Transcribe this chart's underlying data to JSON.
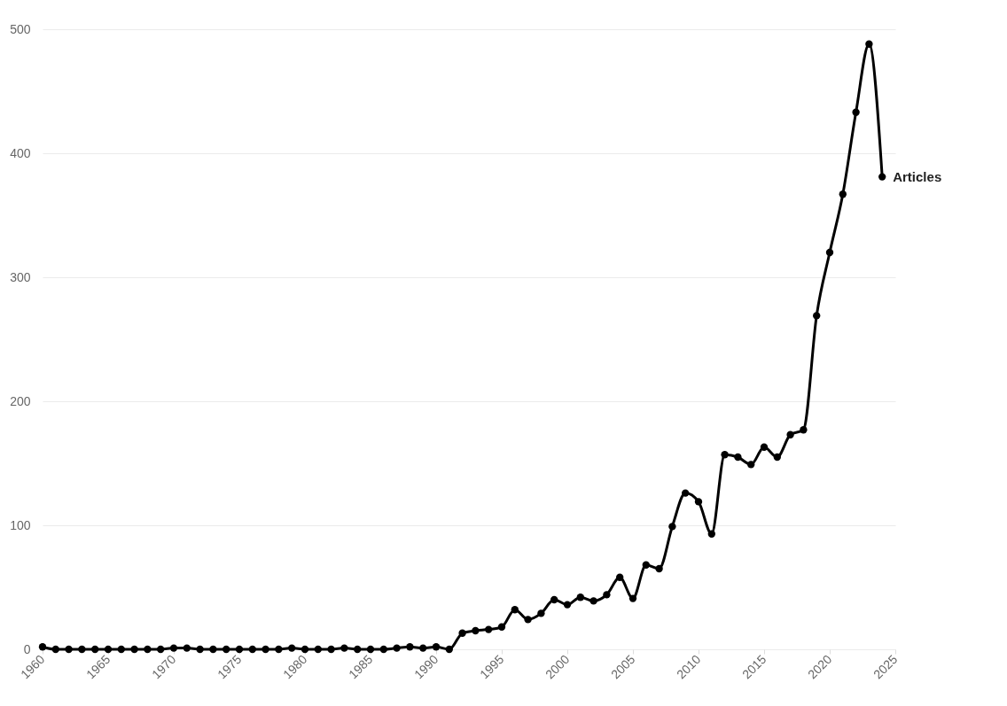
{
  "chart_data": {
    "type": "line",
    "x": [
      1960,
      1961,
      1962,
      1963,
      1964,
      1965,
      1966,
      1967,
      1968,
      1969,
      1970,
      1971,
      1972,
      1973,
      1974,
      1975,
      1976,
      1977,
      1978,
      1979,
      1980,
      1981,
      1982,
      1983,
      1984,
      1985,
      1986,
      1987,
      1988,
      1989,
      1990,
      1991,
      1992,
      1993,
      1994,
      1995,
      1996,
      1997,
      1998,
      1999,
      2000,
      2001,
      2002,
      2003,
      2004,
      2005,
      2006,
      2007,
      2008,
      2009,
      2010,
      2011,
      2012,
      2013,
      2014,
      2015,
      2016,
      2017,
      2018,
      2019,
      2020,
      2021,
      2022,
      2023,
      2024
    ],
    "series": [
      {
        "name": "Articles",
        "color": "#000000",
        "values": [
          2,
          0,
          0,
          0,
          0,
          0,
          0,
          0,
          0,
          0,
          1,
          1,
          0,
          0,
          0,
          0,
          0,
          0,
          0,
          1,
          0,
          0,
          0,
          1,
          0,
          0,
          0,
          1,
          2,
          1,
          2,
          0,
          13,
          15,
          16,
          18,
          32,
          24,
          29,
          40,
          36,
          42,
          39,
          44,
          58,
          41,
          68,
          65,
          99,
          126,
          119,
          93,
          157,
          155,
          149,
          163,
          155,
          173,
          177,
          269,
          320,
          367,
          433,
          488,
          381
        ]
      }
    ],
    "xlim": [
      1960,
      2025
    ],
    "xticks": [
      1960,
      1965,
      1970,
      1975,
      1980,
      1985,
      1990,
      1995,
      2000,
      2005,
      2010,
      2015,
      2020,
      2025
    ],
    "ylim": [
      0,
      500
    ],
    "yticks": [
      0,
      100,
      200,
      300,
      400,
      500
    ],
    "grid": "y",
    "marker": "circle",
    "line_style": "solid"
  }
}
